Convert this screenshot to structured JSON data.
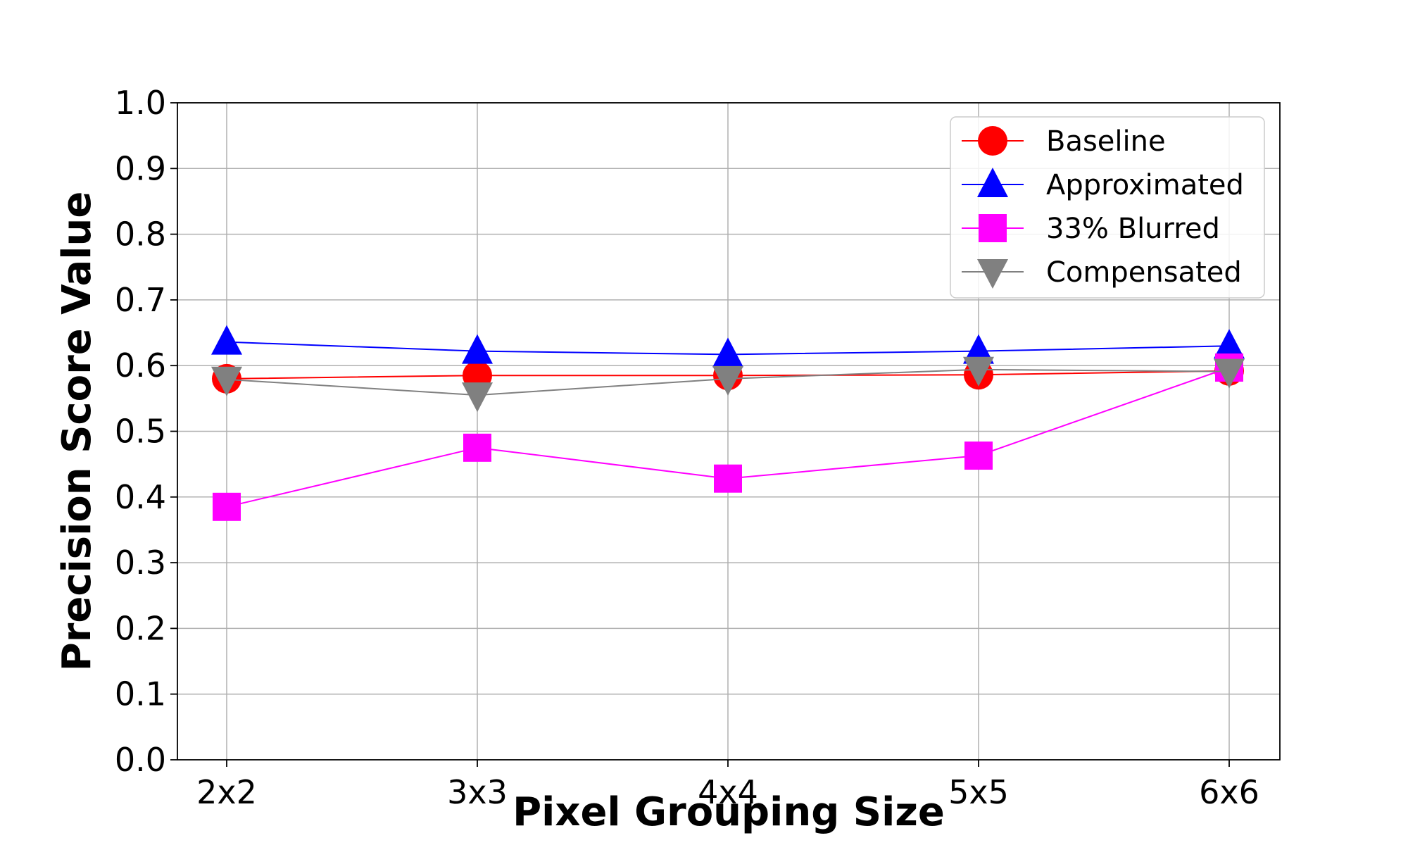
{
  "chart_data": {
    "type": "line",
    "title": "",
    "xlabel": "Pixel Grouping Size",
    "ylabel": "Precision Score Value",
    "categories": [
      "2x2",
      "3x3",
      "4x4",
      "5x5",
      "6x6"
    ],
    "ylim": [
      0.0,
      1.0
    ],
    "yticks": [
      "0.0",
      "0.1",
      "0.2",
      "0.3",
      "0.4",
      "0.5",
      "0.6",
      "0.7",
      "0.8",
      "0.9",
      "1.0"
    ],
    "grid": true,
    "legend_position": "top-right",
    "series": [
      {
        "name": "Baseline",
        "color": "#ff0000",
        "marker": "circle",
        "values": [
          0.58,
          0.585,
          0.585,
          0.586,
          0.592
        ]
      },
      {
        "name": "Approximated",
        "color": "#0000ff",
        "marker": "triangle-up",
        "values": [
          0.636,
          0.622,
          0.617,
          0.622,
          0.63
        ]
      },
      {
        "name": "33% Blurred",
        "color": "#ff00ff",
        "marker": "square",
        "values": [
          0.385,
          0.475,
          0.428,
          0.463,
          0.597
        ]
      },
      {
        "name": "Compensated",
        "color": "#808080",
        "marker": "triangle-down",
        "values": [
          0.579,
          0.555,
          0.58,
          0.594,
          0.591
        ]
      }
    ]
  }
}
